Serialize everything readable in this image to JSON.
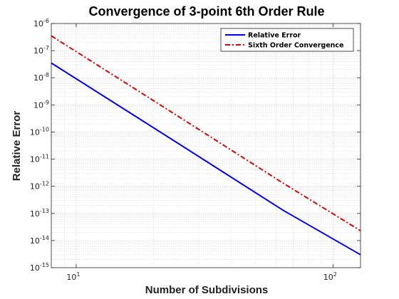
{
  "chart_data": {
    "type": "line",
    "title": "Convergence of 3-point 6th Order Rule",
    "xlabel": "Number of Subdivisions",
    "ylabel": "Relative Error",
    "xscale": "log",
    "yscale": "log",
    "xlim": [
      8,
      128
    ],
    "ylim": [
      1e-15,
      1e-06
    ],
    "grid": "major and minor (dotted)",
    "legend_position": "top-right",
    "x": [
      8,
      16,
      32,
      64,
      128
    ],
    "series": [
      {
        "name": "Relative Error",
        "color": "#0000ee",
        "style": "solid",
        "values": [
          3.5e-08,
          5.5e-10,
          8.5e-12,
          1.3e-13,
          3e-15
        ]
      },
      {
        "name": "Sixth Order Convergence",
        "color": "#dd0000",
        "style": "dash-dot",
        "values": [
          3.5e-07,
          5.5e-09,
          8.5e-11,
          1.3e-12,
          2.3e-14
        ]
      }
    ],
    "x_ticks": [
      {
        "value": 10,
        "base": "10",
        "exp": "1"
      },
      {
        "value": 100,
        "base": "10",
        "exp": "2"
      }
    ],
    "y_ticks": [
      {
        "value": 1e-06,
        "base": "10",
        "exp": "-6"
      },
      {
        "value": 1e-07,
        "base": "10",
        "exp": "-7"
      },
      {
        "value": 1e-08,
        "base": "10",
        "exp": "-8"
      },
      {
        "value": 1e-09,
        "base": "10",
        "exp": "-9"
      },
      {
        "value": 1e-10,
        "base": "10",
        "exp": "-10"
      },
      {
        "value": 1e-11,
        "base": "10",
        "exp": "-11"
      },
      {
        "value": 1e-12,
        "base": "10",
        "exp": "-12"
      },
      {
        "value": 1e-13,
        "base": "10",
        "exp": "-13"
      },
      {
        "value": 1e-14,
        "base": "10",
        "exp": "-14"
      },
      {
        "value": 1e-15,
        "base": "10",
        "exp": "-15"
      }
    ]
  }
}
